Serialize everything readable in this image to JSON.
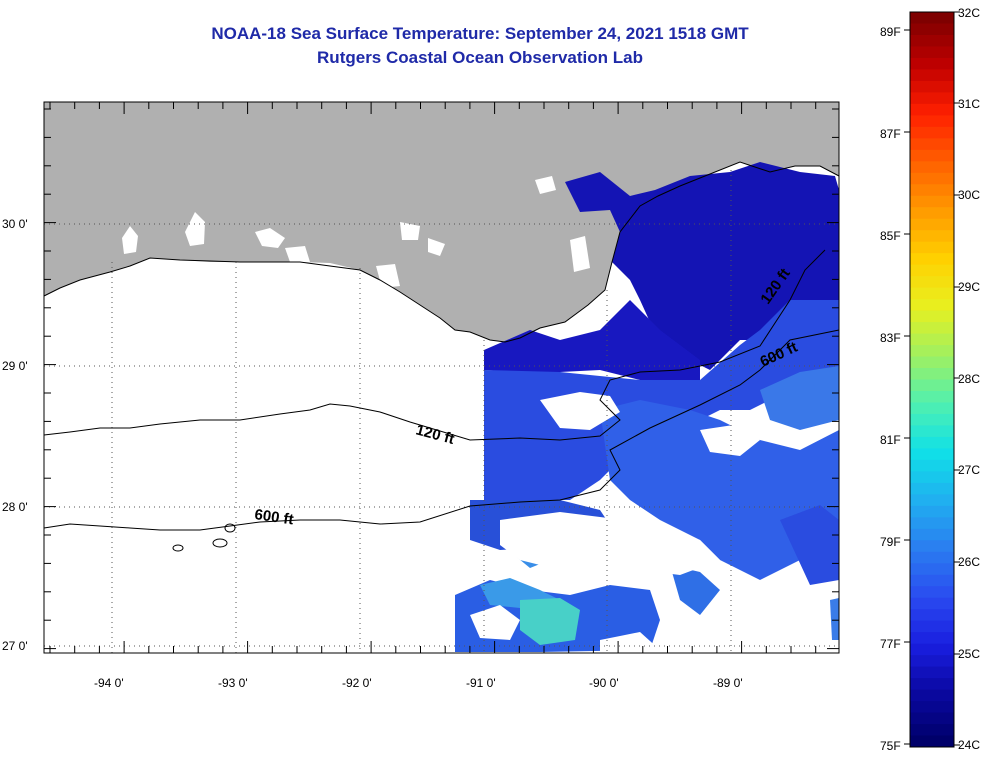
{
  "title": "NOAA-18 Sea Surface Temperature:  September 24, 2021 1518 GMT",
  "subtitle": "Rutgers Coastal Ocean Observation Lab",
  "lat_labels": [
    "30 0'",
    "29 0'",
    "28 0'",
    "27 0'"
  ],
  "lon_labels": [
    "-94 0'",
    "-93 0'",
    "-92 0'",
    "-91 0'",
    "-90 0'",
    "-89 0'"
  ],
  "contours": {
    "c120_west": "120 ft",
    "c600_west": "600 ft",
    "c120_east": "120 ft",
    "c600_east": "600 ft"
  },
  "colorbar": {
    "f_labels": [
      "89F",
      "87F",
      "85F",
      "83F",
      "81F",
      "79F",
      "77F",
      "75F"
    ],
    "c_labels": [
      "32C",
      "31C",
      "30C",
      "29C",
      "28C",
      "27C",
      "26C",
      "25C",
      "24C"
    ],
    "colors": [
      "#7f0000",
      "#c00000",
      "#ff2000",
      "#ff6000",
      "#ff9a00",
      "#ffd000",
      "#e8f020",
      "#a0f060",
      "#50f0b0",
      "#10e0e8",
      "#20b0f0",
      "#2a7ef0",
      "#2a4cf0",
      "#1a1ee0",
      "#0a08a0",
      "#00006a"
    ]
  },
  "colors": {
    "land": "#b0b0b0",
    "title": "#1f2aa8",
    "sst_main": "#2a4ce0",
    "sst_nearshore": "#1414b4"
  }
}
